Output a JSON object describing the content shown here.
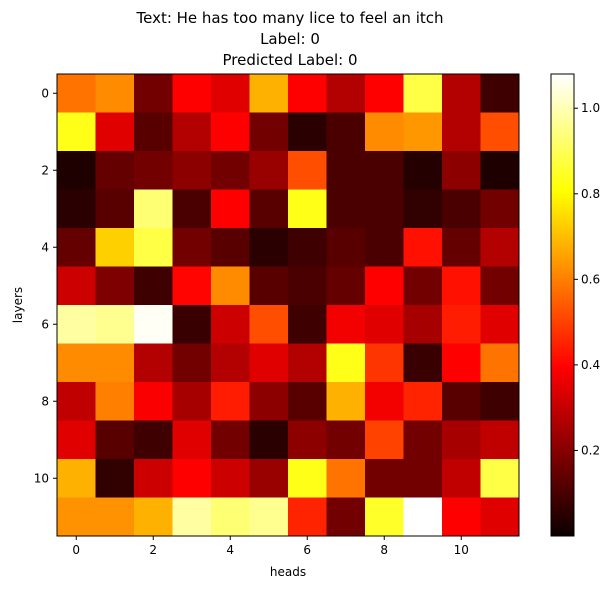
{
  "chart_data": {
    "type": "heatmap",
    "title_lines": [
      "Text: He has too many lice to feel an itch",
      "Label: 0",
      "Predicted Label: 0"
    ],
    "xlabel": "heads",
    "ylabel": "layers",
    "x_ticks": [
      0,
      2,
      4,
      6,
      8,
      10
    ],
    "y_ticks": [
      0,
      2,
      4,
      6,
      8,
      10
    ],
    "colormap": "hot",
    "color_range": [
      0.0,
      1.08
    ],
    "colorbar_ticks": [
      0.2,
      0.4,
      0.6,
      0.8,
      1.0
    ],
    "colorbar_tick_labels": [
      "0.2",
      "0.4",
      "0.6",
      "0.8",
      "1.0"
    ],
    "values": [
      [
        0.58,
        0.62,
        0.16,
        0.38,
        0.33,
        0.68,
        0.38,
        0.26,
        0.38,
        0.88,
        0.26,
        0.08
      ],
      [
        0.83,
        0.33,
        0.12,
        0.26,
        0.38,
        0.16,
        0.05,
        0.1,
        0.62,
        0.64,
        0.26,
        0.52
      ],
      [
        0.03,
        0.14,
        0.16,
        0.2,
        0.16,
        0.22,
        0.52,
        0.1,
        0.1,
        0.04,
        0.2,
        0.03
      ],
      [
        0.05,
        0.12,
        0.93,
        0.1,
        0.38,
        0.12,
        0.83,
        0.1,
        0.1,
        0.06,
        0.1,
        0.16
      ],
      [
        0.14,
        0.73,
        0.88,
        0.16,
        0.12,
        0.05,
        0.08,
        0.12,
        0.1,
        0.42,
        0.14,
        0.26
      ],
      [
        0.3,
        0.18,
        0.08,
        0.4,
        0.62,
        0.12,
        0.1,
        0.14,
        0.38,
        0.16,
        0.42,
        0.16
      ],
      [
        0.98,
        0.96,
        1.07,
        0.07,
        0.3,
        0.52,
        0.08,
        0.36,
        0.33,
        0.24,
        0.44,
        0.33
      ],
      [
        0.62,
        0.62,
        0.26,
        0.16,
        0.26,
        0.33,
        0.26,
        0.83,
        0.48,
        0.07,
        0.38,
        0.58
      ],
      [
        0.28,
        0.6,
        0.37,
        0.24,
        0.44,
        0.2,
        0.12,
        0.68,
        0.36,
        0.45,
        0.12,
        0.08
      ],
      [
        0.33,
        0.12,
        0.08,
        0.33,
        0.16,
        0.05,
        0.2,
        0.16,
        0.5,
        0.16,
        0.24,
        0.28
      ],
      [
        0.68,
        0.06,
        0.3,
        0.38,
        0.3,
        0.22,
        0.83,
        0.58,
        0.16,
        0.16,
        0.28,
        0.88
      ],
      [
        0.63,
        0.63,
        0.68,
        0.98,
        0.93,
        0.96,
        0.45,
        0.16,
        0.85,
        1.08,
        0.38,
        0.33
      ]
    ]
  }
}
